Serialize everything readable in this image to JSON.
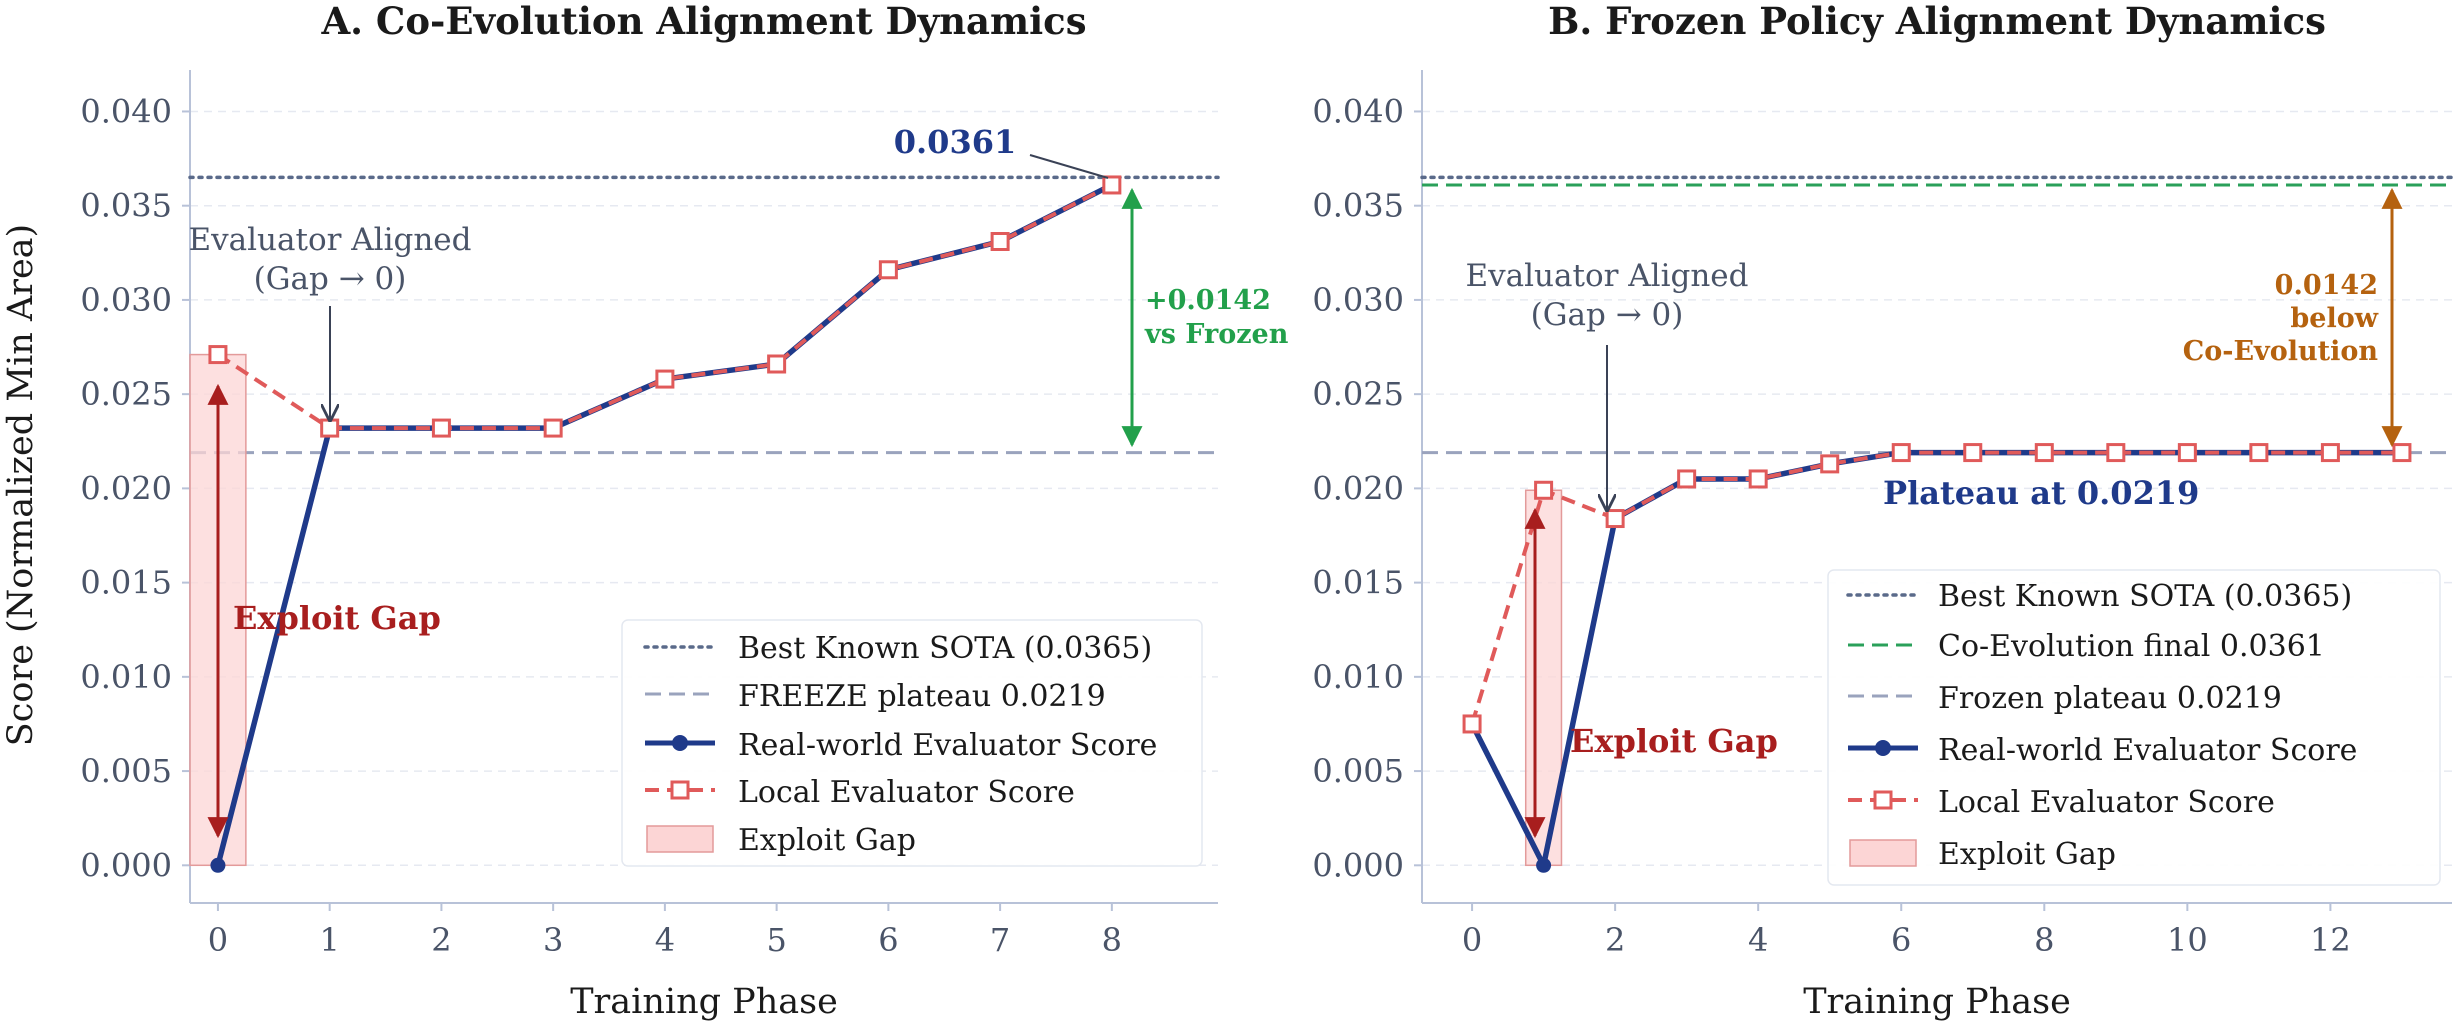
{
  "chart_data": [
    {
      "type": "line",
      "title": "A. Co-Evolution Alignment Dynamics",
      "xlabel": "Training Phase",
      "ylabel": "Score (Normalized Min Area)",
      "xlim": [
        -0.25,
        8.95
      ],
      "ylim": [
        -0.002,
        0.0422
      ],
      "xticks": [
        0,
        1,
        2,
        3,
        4,
        5,
        6,
        7,
        8
      ],
      "yticks": [
        0.0,
        0.005,
        0.01,
        0.015,
        0.02,
        0.025,
        0.03,
        0.035,
        0.04
      ],
      "ytick_labels": [
        "0.000",
        "0.005",
        "0.010",
        "0.015",
        "0.020",
        "0.025",
        "0.030",
        "0.035",
        "0.040"
      ],
      "grid": true,
      "legend_position": "lower-right",
      "series": [
        {
          "name": "Real-world Evaluator Score",
          "color": "#1f3a8a",
          "style": "solid",
          "marker": "circle",
          "x": [
            0,
            1,
            2,
            3,
            4,
            5,
            6,
            7,
            8
          ],
          "y": [
            0.0,
            0.0232,
            0.0232,
            0.0232,
            0.0258,
            0.0266,
            0.0316,
            0.0331,
            0.0361
          ]
        },
        {
          "name": "Local Evaluator Score",
          "color": "#e05a5a",
          "style": "dashed",
          "marker": "square",
          "x": [
            0,
            1,
            2,
            3,
            4,
            5,
            6,
            7,
            8
          ],
          "y": [
            0.0271,
            0.0232,
            0.0232,
            0.0232,
            0.0258,
            0.0266,
            0.0316,
            0.0331,
            0.0361
          ]
        }
      ],
      "reference_lines": [
        {
          "name": "Best Known SOTA (0.0365)",
          "y": 0.0365,
          "color": "#5a6a8a",
          "style": "dotted"
        },
        {
          "name": "FREEZE plateau 0.0219",
          "y": 0.0219,
          "color": "#9aa3bd",
          "style": "dashed"
        }
      ],
      "exploit_gap": {
        "name": "Exploit Gap",
        "x_from": -0.25,
        "x_to": 0.25,
        "y_from": 0.0,
        "y_to": 0.0271
      },
      "annotations": {
        "gap_label": "Exploit Gap",
        "aligned_line1": "Evaluator Aligned",
        "aligned_line2": "(Gap → 0)",
        "final_value": "0.0361",
        "delta_line1": "+0.0142",
        "delta_line2": "vs Frozen"
      }
    },
    {
      "type": "line",
      "title": "B. Frozen Policy Alignment Dynamics",
      "xlabel": "Training Phase",
      "ylabel": "",
      "xlim": [
        -0.7,
        13.7
      ],
      "ylim": [
        -0.002,
        0.0422
      ],
      "xticks": [
        0,
        2,
        4,
        6,
        8,
        10,
        12
      ],
      "yticks": [
        0.0,
        0.005,
        0.01,
        0.015,
        0.02,
        0.025,
        0.03,
        0.035,
        0.04
      ],
      "ytick_labels": [
        "0.000",
        "0.005",
        "0.010",
        "0.015",
        "0.020",
        "0.025",
        "0.030",
        "0.035",
        "0.040"
      ],
      "grid": true,
      "legend_position": "lower-right",
      "series": [
        {
          "name": "Real-world Evaluator Score",
          "color": "#1f3a8a",
          "style": "solid",
          "marker": "circle",
          "x": [
            0,
            1,
            2,
            3,
            4,
            5,
            6,
            7,
            8,
            9,
            10,
            11,
            12,
            13
          ],
          "y": [
            0.0075,
            0.0,
            0.0184,
            0.0205,
            0.0205,
            0.0213,
            0.0219,
            0.0219,
            0.0219,
            0.0219,
            0.0219,
            0.0219,
            0.0219,
            0.0219
          ]
        },
        {
          "name": "Local Evaluator Score",
          "color": "#e05a5a",
          "style": "dashed",
          "marker": "square",
          "x": [
            0,
            1,
            2,
            3,
            4,
            5,
            6,
            7,
            8,
            9,
            10,
            11,
            12,
            13
          ],
          "y": [
            0.0075,
            0.0199,
            0.0184,
            0.0205,
            0.0205,
            0.0213,
            0.0219,
            0.0219,
            0.0219,
            0.0219,
            0.0219,
            0.0219,
            0.0219,
            0.0219
          ]
        }
      ],
      "reference_lines": [
        {
          "name": "Best Known SOTA (0.0365)",
          "y": 0.0365,
          "color": "#5a6a8a",
          "style": "dotted"
        },
        {
          "name": "Co-Evolution final 0.0361",
          "y": 0.0361,
          "color": "#2aa05a",
          "style": "dashed"
        },
        {
          "name": "Frozen plateau 0.0219",
          "y": 0.0219,
          "color": "#9aa3bd",
          "style": "dashed"
        }
      ],
      "exploit_gap": {
        "name": "Exploit Gap",
        "x_from": 0.75,
        "x_to": 1.25,
        "y_from": 0.0,
        "y_to": 0.0199
      },
      "annotations": {
        "gap_label": "Exploit Gap",
        "aligned_line1": "Evaluator Aligned",
        "aligned_line2": "(Gap → 0)",
        "plateau_label": "Plateau at 0.0219",
        "below_line1": "0.0142",
        "below_line2": "below",
        "below_line3": "Co-Evolution"
      }
    }
  ]
}
